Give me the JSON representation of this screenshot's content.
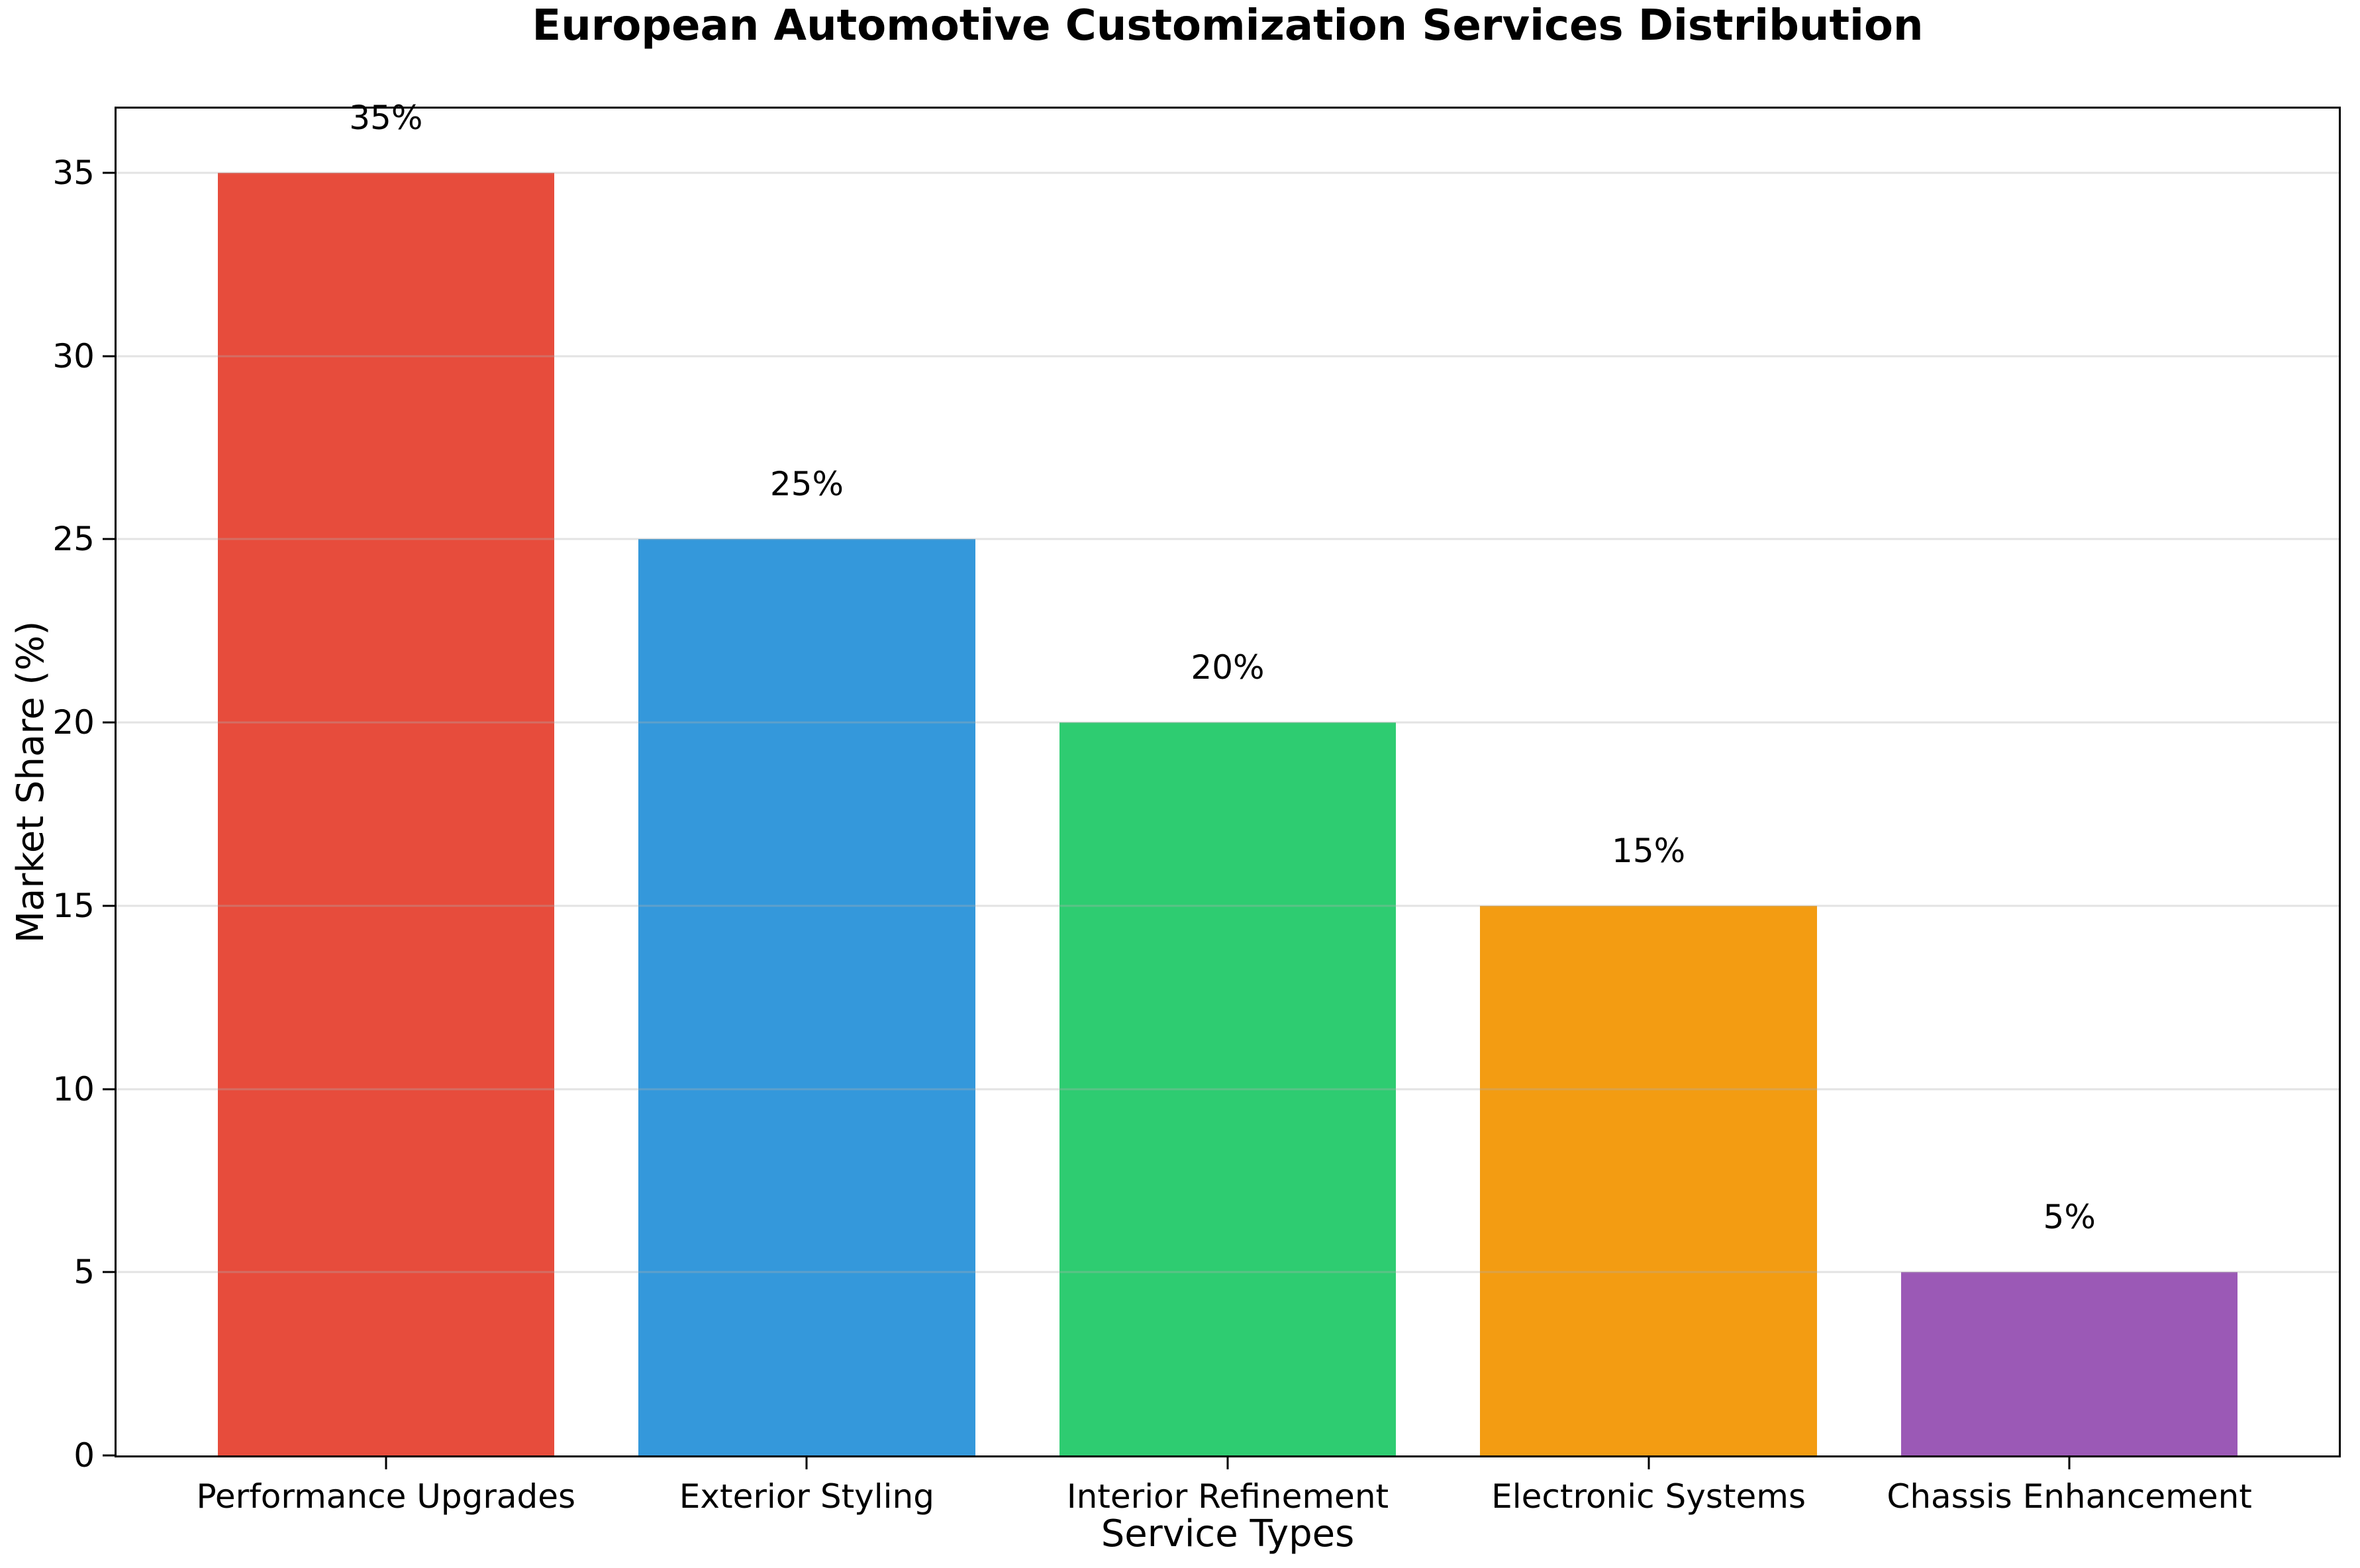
{
  "chart_data": {
    "type": "bar",
    "title": "European Automotive Customization Services Distribution",
    "xlabel": "Service Types",
    "ylabel": "Market Share (%)",
    "categories": [
      "Performance Upgrades",
      "Exterior Styling",
      "Interior Refinement",
      "Electronic Systems",
      "Chassis Enhancement"
    ],
    "values": [
      35,
      25,
      20,
      15,
      5
    ],
    "value_labels": [
      "35%",
      "25%",
      "20%",
      "15%",
      "5%"
    ],
    "bar_colors": [
      "#e74c3c",
      "#3498db",
      "#2ecc71",
      "#f39c12",
      "#9b59b6"
    ],
    "yticks": [
      0,
      5,
      10,
      15,
      20,
      25,
      30,
      35
    ],
    "ylim": [
      0,
      36.75
    ],
    "grid": "horizontal",
    "grid_color": "rgba(176,176,176,0.35)",
    "spine_color": "#000000",
    "background_color": "#ffffff",
    "legend": "none"
  }
}
